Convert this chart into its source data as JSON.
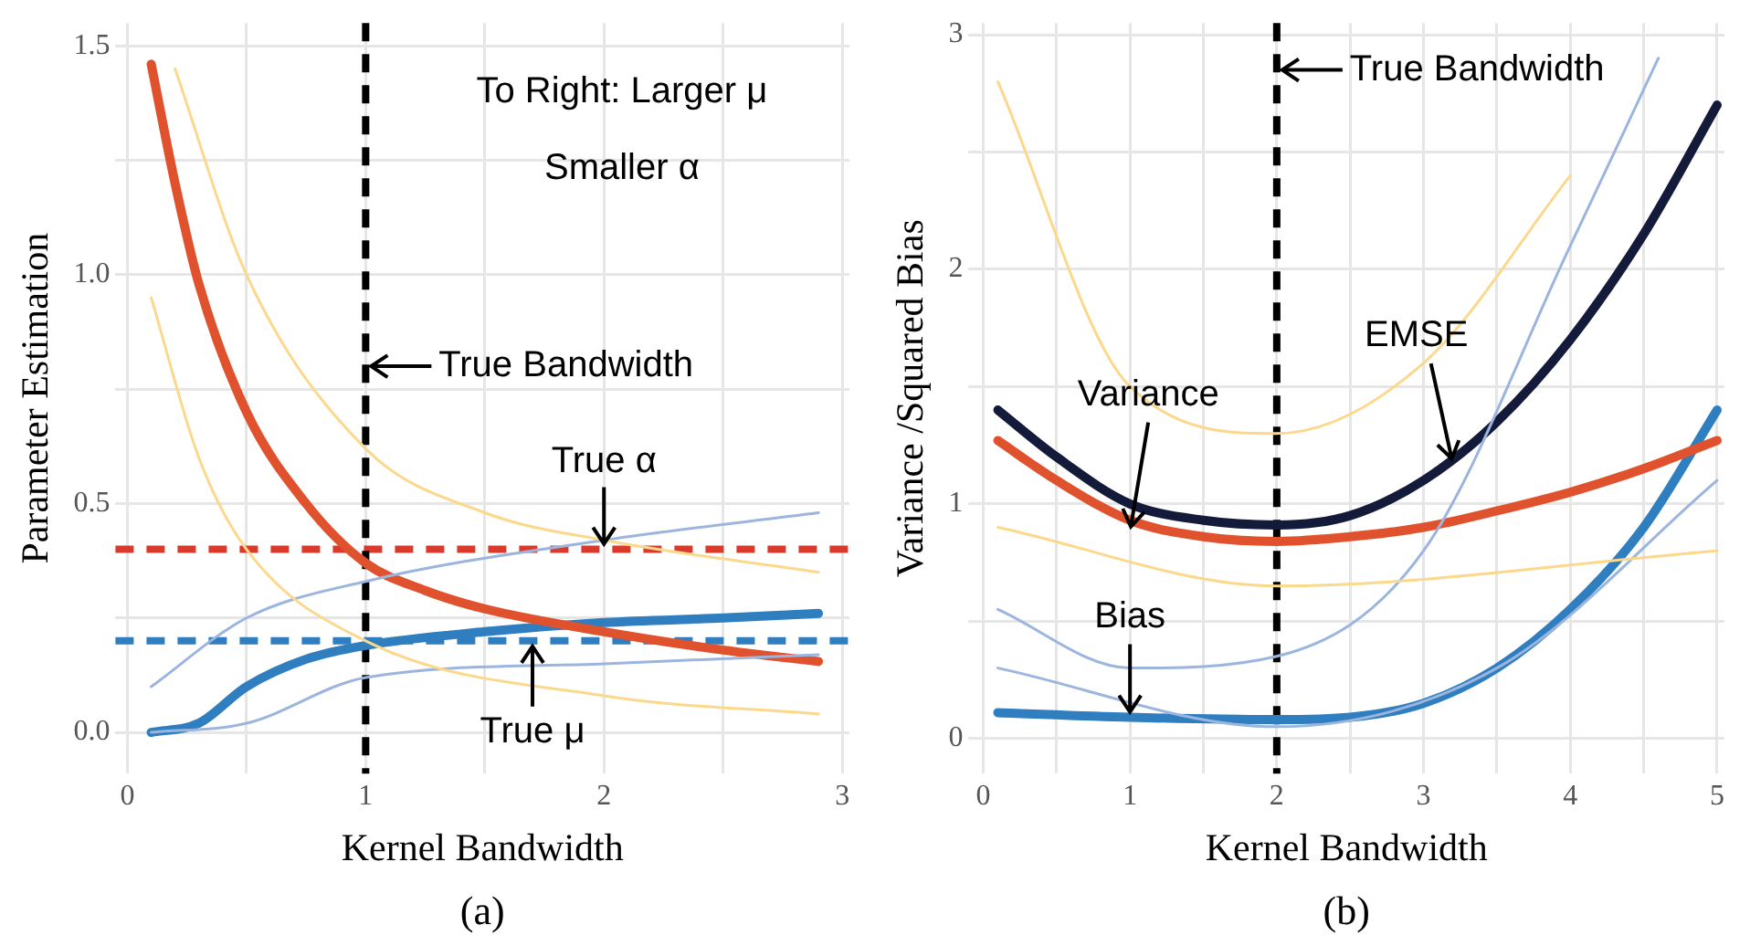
{
  "chart_data": [
    {
      "type": "line",
      "xlabel": "Kernel Bandwidth",
      "ylabel": "Parameter Estimation",
      "xlim": [
        -0.05,
        3.03
      ],
      "xticks": [
        0,
        {
          "value": 0.5,
          "label": null
        },
        1,
        {
          "value": 1.5,
          "label": null
        },
        2,
        {
          "value": 2.5,
          "label": null
        },
        3
      ],
      "ylim": [
        -0.09,
        1.55
      ],
      "yticks": [
        {
          "value": 0,
          "label": "0.0"
        },
        {
          "value": 0.25,
          "label": null
        },
        {
          "value": 0.5,
          "label": "0.5"
        },
        {
          "value": 0.75,
          "label": null
        },
        {
          "value": 1,
          "label": "1.0"
        },
        {
          "value": 1.25,
          "label": null
        },
        {
          "value": 1.5,
          "label": "1.5"
        }
      ],
      "grid": true,
      "legend": false,
      "marker": "none",
      "line_style": "solid",
      "series": [
        {
          "color": "#fcd88c",
          "x": [
            0.2,
            0.5,
            1,
            1.5,
            2,
            2.9
          ],
          "values": [
            1.45,
            1.0,
            0.62,
            0.48,
            0.42,
            0.35
          ]
        },
        {
          "color": "#fcd88c",
          "x": [
            0.1,
            0.3,
            0.5,
            1,
            2,
            2.9
          ],
          "values": [
            0.95,
            0.6,
            0.4,
            0.2,
            0.08,
            0.04
          ]
        },
        {
          "color": "#9bb5de",
          "x": [
            0.1,
            0.5,
            1,
            2,
            2.9
          ],
          "values": [
            0.1,
            0.25,
            0.33,
            0.42,
            0.48
          ]
        },
        {
          "color": "#9bb5de",
          "x": [
            0.1,
            0.5,
            1,
            2,
            2.9
          ],
          "values": [
            0,
            0.02,
            0.12,
            0.15,
            0.17
          ]
        },
        {
          "color": "#e0522d",
          "x": [
            0.1,
            0.2,
            0.3,
            0.5,
            0.75,
            1,
            1.25,
            1.5,
            2,
            2.5,
            2.9
          ],
          "values": [
            1.46,
            1.2,
            0.98,
            0.7,
            0.5,
            0.37,
            0.31,
            0.27,
            0.22,
            0.18,
            0.155
          ]
        },
        {
          "color": "#2f7ec0",
          "x": [
            0.1,
            0.3,
            0.5,
            0.75,
            1,
            1.5,
            2,
            2.5,
            2.9
          ],
          "values": [
            0,
            0.02,
            0.1,
            0.16,
            0.19,
            0.22,
            0.24,
            0.25,
            0.26
          ]
        }
      ],
      "ref_lines": [
        {
          "axis": "y",
          "value": 0.4,
          "color": "#d93a2b",
          "line_style": "dashed"
        },
        {
          "axis": "y",
          "value": 0.2,
          "color": "#2f7ec0",
          "line_style": "dashed"
        },
        {
          "axis": "x",
          "value": 1,
          "color": "#000000",
          "line_style": "dashed"
        }
      ],
      "annotations": [
        "To Right: Larger μ",
        "Smaller α",
        {
          "text": "True Bandwidth",
          "x": 1,
          "y": 0.8
        },
        {
          "text": "True α",
          "x": 2,
          "y": 0.4
        },
        {
          "text": "True μ",
          "x": 1.7,
          "y": 0.2
        },
        "(a)"
      ]
    },
    {
      "type": "line",
      "xlabel": "Kernel Bandwidth",
      "ylabel": "Variance /Squared Bias",
      "xlim": [
        -0.1,
        5.05
      ],
      "xticks": [
        0,
        {
          "value": 0.5,
          "label": null
        },
        1,
        {
          "value": 1.5,
          "label": null
        },
        2,
        {
          "value": 2.5,
          "label": null
        },
        3,
        {
          "value": 3.5,
          "label": null
        },
        4,
        {
          "value": 4.5,
          "label": null
        },
        5
      ],
      "ylim": [
        -0.15,
        3.05
      ],
      "yticks": [
        0,
        {
          "value": 0.5,
          "label": null
        },
        1,
        {
          "value": 1.5,
          "label": null
        },
        2,
        {
          "value": 2.5,
          "label": null
        },
        3
      ],
      "grid": true,
      "legend": false,
      "marker": "none",
      "line_style": "solid",
      "series": [
        {
          "color": "#fcd88c",
          "x": [
            0.1,
            1,
            2,
            3,
            4
          ],
          "values": [
            2.8,
            1.5,
            1.3,
            1.6,
            2.4
          ]
        },
        {
          "color": "#fcd88c",
          "x": [
            0.1,
            2,
            5
          ],
          "values": [
            0.9,
            0.65,
            0.8
          ]
        },
        {
          "color": "#9bb5de",
          "x": [
            0.1,
            1,
            2,
            3,
            4,
            4.6
          ],
          "values": [
            0.55,
            0.3,
            0.35,
            0.8,
            2.1,
            2.9
          ]
        },
        {
          "color": "#9bb5de",
          "x": [
            0.1,
            2,
            3.5,
            5
          ],
          "values": [
            0.3,
            0.05,
            0.3,
            1.1
          ]
        },
        {
          "color": "#141a3a",
          "x": [
            0.1,
            0.5,
            1,
            1.5,
            2,
            2.5,
            3,
            3.5,
            4,
            4.5,
            5
          ],
          "values": [
            1.4,
            1.2,
            1.0,
            0.93,
            0.91,
            0.95,
            1.1,
            1.35,
            1.7,
            2.15,
            2.7
          ]
        },
        {
          "color": "#e0522d",
          "x": [
            0.1,
            0.5,
            1,
            1.5,
            2,
            2.5,
            3,
            3.5,
            4,
            4.5,
            5
          ],
          "values": [
            1.27,
            1.1,
            0.93,
            0.86,
            0.84,
            0.86,
            0.9,
            0.97,
            1.05,
            1.15,
            1.27
          ]
        },
        {
          "color": "#2f7ec0",
          "x": [
            0.1,
            1,
            2,
            2.5,
            3,
            3.5,
            4,
            4.5,
            5
          ],
          "values": [
            0.11,
            0.09,
            0.08,
            0.09,
            0.15,
            0.3,
            0.55,
            0.9,
            1.4
          ]
        }
      ],
      "ref_lines": [
        {
          "axis": "x",
          "value": 2,
          "color": "#000000",
          "line_style": "dashed"
        }
      ],
      "annotations": [
        {
          "text": "True Bandwidth",
          "x": 2,
          "y": 2.85
        },
        {
          "text": "EMSE",
          "x": 3.2,
          "y": 1.17
        },
        {
          "text": "Variance",
          "x": 1,
          "y": 0.88
        },
        {
          "text": "Bias",
          "x": 1,
          "y": 0.09
        },
        "(b)"
      ]
    }
  ]
}
